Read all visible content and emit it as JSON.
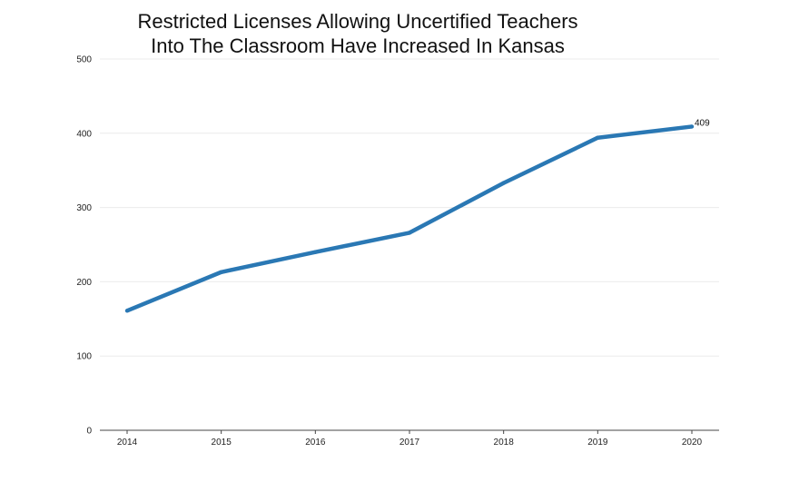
{
  "chart_data": {
    "type": "line",
    "title_lines": [
      "Restricted Licenses Allowing Uncertified Teachers",
      "Into The Classroom Have Increased In Kansas"
    ],
    "xlabel": "",
    "ylabel": "",
    "categories": [
      "2014",
      "2015",
      "2016",
      "2017",
      "2018",
      "2019",
      "2020"
    ],
    "series": [
      {
        "values": [
          161,
          213,
          240,
          266,
          333,
          394,
          409
        ]
      }
    ],
    "ylim": [
      0,
      500
    ],
    "y_ticks": [
      "0",
      "100",
      "200",
      "300",
      "400",
      "500"
    ],
    "data_labels": [
      {
        "index": 6,
        "text": "409"
      }
    ],
    "grid": true,
    "legend": "none",
    "colors": {
      "line": "#2a78b4",
      "grid": "#ebebeb",
      "axis": "#444444"
    }
  }
}
